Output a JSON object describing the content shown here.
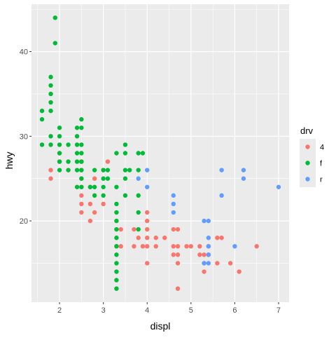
{
  "chart_data": {
    "type": "scatter",
    "title": "",
    "xlabel": "displ",
    "ylabel": "hwy",
    "xlim": [
      1.36,
      7.24
    ],
    "ylim": [
      10.4,
      45.6
    ],
    "x_ticks": [
      2,
      3,
      4,
      5,
      6,
      7
    ],
    "y_ticks": [
      20,
      30,
      40
    ],
    "grid": true,
    "legend": {
      "title": "drv",
      "placement": "right"
    },
    "colors": {
      "4": "#F8766D",
      "f": "#00BA38",
      "r": "#619CFF",
      "panel": "#EBEBEB",
      "grid": "#FFFFFF"
    },
    "series": [
      {
        "name": "4",
        "points": [
          [
            1.8,
            26
          ],
          [
            1.8,
            25
          ],
          [
            2.0,
            28
          ],
          [
            2.0,
            27
          ],
          [
            2.5,
            27
          ],
          [
            2.5,
            26
          ],
          [
            2.5,
            25
          ],
          [
            2.5,
            24
          ],
          [
            2.5,
            23
          ],
          [
            2.5,
            22
          ],
          [
            2.5,
            21
          ],
          [
            2.7,
            20
          ],
          [
            2.7,
            22
          ],
          [
            2.7,
            24
          ],
          [
            2.8,
            25
          ],
          [
            2.8,
            21
          ],
          [
            3.0,
            22
          ],
          [
            3.0,
            26
          ],
          [
            3.1,
            27
          ],
          [
            3.3,
            17
          ],
          [
            3.4,
            17
          ],
          [
            3.4,
            19
          ],
          [
            3.7,
            19
          ],
          [
            3.7,
            17
          ],
          [
            3.8,
            18
          ],
          [
            3.9,
            17
          ],
          [
            4.0,
            15
          ],
          [
            4.0,
            17
          ],
          [
            4.0,
            18
          ],
          [
            4.0,
            19
          ],
          [
            4.0,
            20
          ],
          [
            4.0,
            21
          ],
          [
            4.2,
            18
          ],
          [
            4.2,
            17
          ],
          [
            4.4,
            18
          ],
          [
            4.6,
            17
          ],
          [
            4.6,
            16
          ],
          [
            4.6,
            19
          ],
          [
            4.7,
            19
          ],
          [
            4.7,
            17
          ],
          [
            4.7,
            15
          ],
          [
            4.7,
            12
          ],
          [
            4.7,
            16
          ],
          [
            4.9,
            17
          ],
          [
            5.0,
            17
          ],
          [
            5.2,
            16
          ],
          [
            5.2,
            17
          ],
          [
            5.3,
            14
          ],
          [
            5.3,
            15
          ],
          [
            5.3,
            16
          ],
          [
            5.4,
            16
          ],
          [
            5.4,
            17
          ],
          [
            5.6,
            18
          ],
          [
            5.6,
            15
          ],
          [
            5.7,
            18
          ],
          [
            5.9,
            15
          ],
          [
            6.1,
            14
          ],
          [
            6.5,
            17
          ]
        ]
      },
      {
        "name": "f",
        "points": [
          [
            1.6,
            33
          ],
          [
            1.6,
            32
          ],
          [
            1.6,
            29
          ],
          [
            1.8,
            37
          ],
          [
            1.8,
            36
          ],
          [
            1.8,
            35
          ],
          [
            1.8,
            34
          ],
          [
            1.8,
            33
          ],
          [
            1.8,
            30
          ],
          [
            1.8,
            29
          ],
          [
            1.9,
            44
          ],
          [
            1.9,
            41
          ],
          [
            2.0,
            31
          ],
          [
            2.0,
            30
          ],
          [
            2.0,
            29
          ],
          [
            2.0,
            28
          ],
          [
            2.0,
            27
          ],
          [
            2.0,
            26
          ],
          [
            2.2,
            29
          ],
          [
            2.2,
            27
          ],
          [
            2.2,
            26
          ],
          [
            2.4,
            31
          ],
          [
            2.4,
            30
          ],
          [
            2.4,
            29
          ],
          [
            2.4,
            28
          ],
          [
            2.4,
            27
          ],
          [
            2.4,
            26
          ],
          [
            2.4,
            24
          ],
          [
            2.5,
            32
          ],
          [
            2.5,
            31
          ],
          [
            2.5,
            29
          ],
          [
            2.5,
            28
          ],
          [
            2.5,
            27
          ],
          [
            2.5,
            26
          ],
          [
            2.5,
            25
          ],
          [
            2.5,
            24
          ],
          [
            2.7,
            24
          ],
          [
            2.8,
            26
          ],
          [
            2.8,
            24
          ],
          [
            2.8,
            23
          ],
          [
            3.0,
            26
          ],
          [
            3.0,
            25
          ],
          [
            3.0,
            24
          ],
          [
            3.0,
            23
          ],
          [
            3.1,
            26
          ],
          [
            3.1,
            25
          ],
          [
            3.3,
            28
          ],
          [
            3.3,
            24
          ],
          [
            3.5,
            29
          ],
          [
            3.5,
            28
          ],
          [
            3.5,
            26
          ],
          [
            3.5,
            25
          ],
          [
            3.5,
            23
          ],
          [
            3.6,
            26
          ],
          [
            3.8,
            28
          ],
          [
            3.8,
            26
          ],
          [
            3.8,
            23
          ],
          [
            3.8,
            21
          ],
          [
            3.8,
            19
          ],
          [
            3.9,
            28
          ],
          [
            3.3,
            22
          ],
          [
            3.3,
            21
          ],
          [
            3.3,
            20
          ],
          [
            3.3,
            19
          ],
          [
            3.3,
            18
          ],
          [
            3.3,
            17
          ],
          [
            3.3,
            16
          ],
          [
            3.3,
            15
          ],
          [
            3.3,
            14
          ],
          [
            3.3,
            13
          ],
          [
            3.3,
            12
          ]
        ]
      },
      {
        "name": "r",
        "points": [
          [
            3.8,
            25
          ],
          [
            4.0,
            26
          ],
          [
            4.0,
            24
          ],
          [
            4.6,
            23
          ],
          [
            4.6,
            22
          ],
          [
            4.6,
            21
          ],
          [
            5.3,
            20
          ],
          [
            5.3,
            15
          ],
          [
            5.4,
            20
          ],
          [
            5.4,
            18
          ],
          [
            5.4,
            17
          ],
          [
            5.4,
            16
          ],
          [
            5.4,
            15
          ],
          [
            5.7,
            26
          ],
          [
            5.7,
            23
          ],
          [
            6.0,
            17
          ],
          [
            6.2,
            26
          ],
          [
            6.2,
            25
          ],
          [
            7.0,
            24
          ]
        ]
      }
    ]
  }
}
